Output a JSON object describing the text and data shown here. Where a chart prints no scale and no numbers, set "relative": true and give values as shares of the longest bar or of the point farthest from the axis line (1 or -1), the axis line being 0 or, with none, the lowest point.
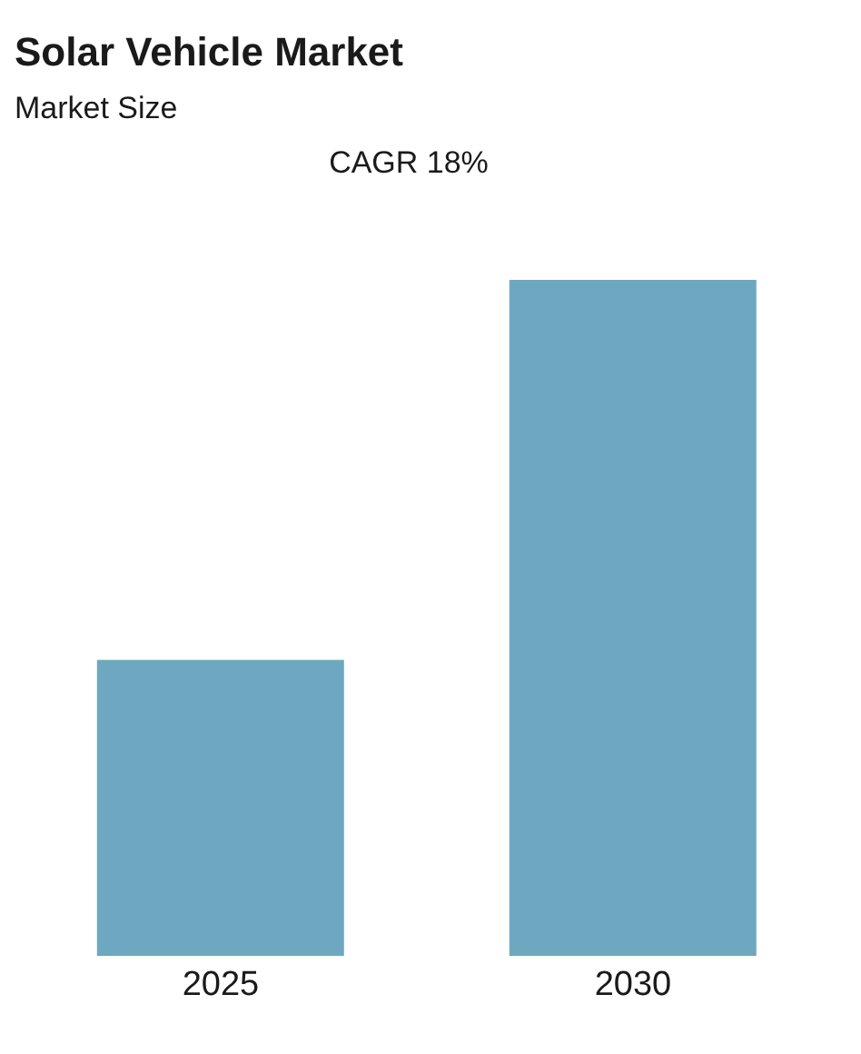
{
  "chart_data": {
    "type": "bar",
    "title": "Solar Vehicle Market",
    "subtitle": "Market Size",
    "annotations": [
      "CAGR 18%"
    ],
    "categories": [
      "2025",
      "2030"
    ],
    "values": [
      0.438,
      1
    ],
    "color": "#6ea8c0",
    "relative": true,
    "grid": false,
    "legend": false
  }
}
